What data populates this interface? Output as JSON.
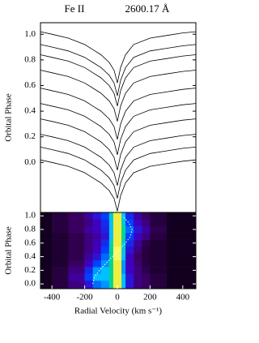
{
  "chart_data": [
    {
      "type": "line",
      "title": "Fe II",
      "wavelength_label": "2600.17 Å",
      "ylabel": "Orbital Phase",
      "x": [
        -470,
        -400,
        -300,
        -200,
        -150,
        -100,
        -50,
        -20,
        0,
        20,
        50,
        100,
        200,
        300,
        400,
        480
      ],
      "xlim": [
        -470,
        480
      ],
      "ylim": [
        -0.39,
        1.09
      ],
      "yticks": [
        {
          "value": 0,
          "label": "0.0"
        },
        0.2,
        0.4,
        0.6,
        0.8,
        {
          "value": 1,
          "label": "1.0"
        }
      ],
      "series": [
        {
          "color": "#000000",
          "values": [
            1.02,
            1.0,
            0.97,
            0.92,
            0.88,
            0.84,
            0.78,
            0.72,
            0.62,
            0.74,
            0.84,
            0.92,
            0.97,
            0.99,
            1.01,
            1.02
          ]
        },
        {
          "color": "#000000",
          "values": [
            0.92,
            0.9,
            0.87,
            0.82,
            0.78,
            0.74,
            0.68,
            0.62,
            0.52,
            0.64,
            0.74,
            0.82,
            0.87,
            0.89,
            0.91,
            0.92
          ]
        },
        {
          "color": "#000000",
          "values": [
            0.84,
            0.82,
            0.79,
            0.74,
            0.7,
            0.66,
            0.6,
            0.54,
            0.44,
            0.56,
            0.66,
            0.74,
            0.79,
            0.81,
            0.83,
            0.84
          ]
        },
        {
          "color": "#000000",
          "values": [
            0.72,
            0.7,
            0.67,
            0.62,
            0.58,
            0.54,
            0.48,
            0.42,
            0.32,
            0.44,
            0.54,
            0.62,
            0.67,
            0.69,
            0.71,
            0.72
          ]
        },
        {
          "color": "#000000",
          "values": [
            0.58,
            0.56,
            0.53,
            0.48,
            0.44,
            0.4,
            0.34,
            0.28,
            0.18,
            0.3,
            0.4,
            0.48,
            0.53,
            0.55,
            0.57,
            0.58
          ]
        },
        {
          "color": "#000000",
          "values": [
            0.46,
            0.44,
            0.41,
            0.36,
            0.32,
            0.28,
            0.22,
            0.16,
            0.06,
            0.18,
            0.28,
            0.36,
            0.41,
            0.43,
            0.45,
            0.46
          ]
        },
        {
          "color": "#000000",
          "values": [
            0.34,
            0.32,
            0.29,
            0.24,
            0.2,
            0.16,
            0.1,
            0.04,
            -0.06,
            0.06,
            0.16,
            0.24,
            0.29,
            0.31,
            0.33,
            0.34
          ]
        },
        {
          "color": "#000000",
          "values": [
            0.22,
            0.2,
            0.17,
            0.12,
            0.08,
            0.04,
            -0.02,
            -0.08,
            -0.18,
            -0.06,
            0.04,
            0.12,
            0.17,
            0.19,
            0.21,
            0.22
          ]
        },
        {
          "color": "#000000",
          "values": [
            0.12,
            0.1,
            0.07,
            0.02,
            -0.02,
            -0.06,
            -0.12,
            -0.18,
            -0.28,
            -0.16,
            -0.06,
            0.02,
            0.07,
            0.09,
            0.11,
            0.12
          ]
        },
        {
          "color": "#000000",
          "values": [
            0.02,
            0,
            -0.03,
            -0.08,
            -0.12,
            -0.16,
            -0.22,
            -0.28,
            -0.38,
            -0.26,
            -0.16,
            -0.08,
            -0.03,
            -0.01,
            0.01,
            0.02
          ]
        }
      ]
    },
    {
      "type": "heatmap",
      "ylabel": "Orbital Phase",
      "xlabel": "Radial Velocity (km s⁻¹)",
      "xlim": [
        -470,
        480
      ],
      "ylim": [
        -0.07,
        1.05
      ],
      "xticks": [
        -400,
        -200,
        0,
        200,
        400
      ],
      "yticks": [
        {
          "value": 0,
          "label": "0.0"
        },
        0.2,
        0.4,
        0.6,
        0.8,
        {
          "value": 1,
          "label": "1.0"
        }
      ],
      "x_edges": [
        -470,
        -400,
        -300,
        -200,
        -150,
        -100,
        -50,
        -25,
        25,
        50,
        100,
        150,
        200,
        300,
        400,
        480
      ],
      "y_edges": [
        -0.07,
        0.05,
        0.15,
        0.25,
        0.35,
        0.45,
        0.55,
        0.65,
        0.75,
        0.85,
        0.95,
        1.05
      ],
      "values": [
        [
          0.05,
          0.1,
          0.2,
          0.35,
          0.5,
          0.55,
          0.7,
          0.95,
          0.6,
          0.35,
          0.2,
          0.15,
          0.1,
          0.05,
          0.05
        ],
        [
          0.05,
          0.1,
          0.25,
          0.45,
          0.6,
          0.6,
          0.7,
          0.95,
          0.6,
          0.35,
          0.2,
          0.15,
          0.1,
          0.05,
          0.05
        ],
        [
          0.05,
          0.1,
          0.2,
          0.4,
          0.55,
          0.6,
          0.7,
          0.95,
          0.55,
          0.3,
          0.2,
          0.12,
          0.08,
          0.05,
          0.05
        ],
        [
          0.05,
          0.08,
          0.15,
          0.3,
          0.45,
          0.55,
          0.7,
          0.95,
          0.55,
          0.3,
          0.18,
          0.1,
          0.08,
          0.05,
          0.05
        ],
        [
          0.05,
          0.08,
          0.12,
          0.25,
          0.35,
          0.5,
          0.7,
          0.98,
          0.6,
          0.3,
          0.15,
          0.1,
          0.08,
          0.05,
          0.05
        ],
        [
          0.05,
          0.08,
          0.12,
          0.2,
          0.3,
          0.45,
          0.7,
          0.98,
          0.65,
          0.35,
          0.2,
          0.1,
          0.08,
          0.05,
          0.05
        ],
        [
          0.05,
          0.08,
          0.12,
          0.2,
          0.28,
          0.4,
          0.65,
          0.95,
          0.65,
          0.4,
          0.25,
          0.12,
          0.08,
          0.05,
          0.05
        ],
        [
          0.05,
          0.08,
          0.12,
          0.2,
          0.25,
          0.35,
          0.6,
          0.95,
          0.7,
          0.45,
          0.3,
          0.2,
          0.1,
          0.05,
          0.05
        ],
        [
          0.05,
          0.1,
          0.15,
          0.25,
          0.3,
          0.38,
          0.6,
          0.95,
          0.7,
          0.5,
          0.35,
          0.25,
          0.12,
          0.05,
          0.05
        ],
        [
          0.05,
          0.1,
          0.15,
          0.2,
          0.3,
          0.4,
          0.6,
          0.95,
          0.65,
          0.45,
          0.3,
          0.2,
          0.1,
          0.05,
          0.05
        ],
        [
          0.05,
          0.1,
          0.15,
          0.25,
          0.35,
          0.45,
          0.65,
          0.95,
          0.6,
          0.4,
          0.25,
          0.15,
          0.1,
          0.05,
          0.05
        ]
      ],
      "overlay": {
        "color": "#ffffff",
        "phase": [
          0,
          0.1,
          0.2,
          0.3,
          0.4,
          0.5,
          0.6,
          0.7,
          0.8,
          0.9,
          1.0
        ],
        "velocity": [
          -150,
          -140,
          -110,
          -70,
          -30,
          10,
          50,
          80,
          90,
          70,
          30
        ]
      }
    }
  ]
}
